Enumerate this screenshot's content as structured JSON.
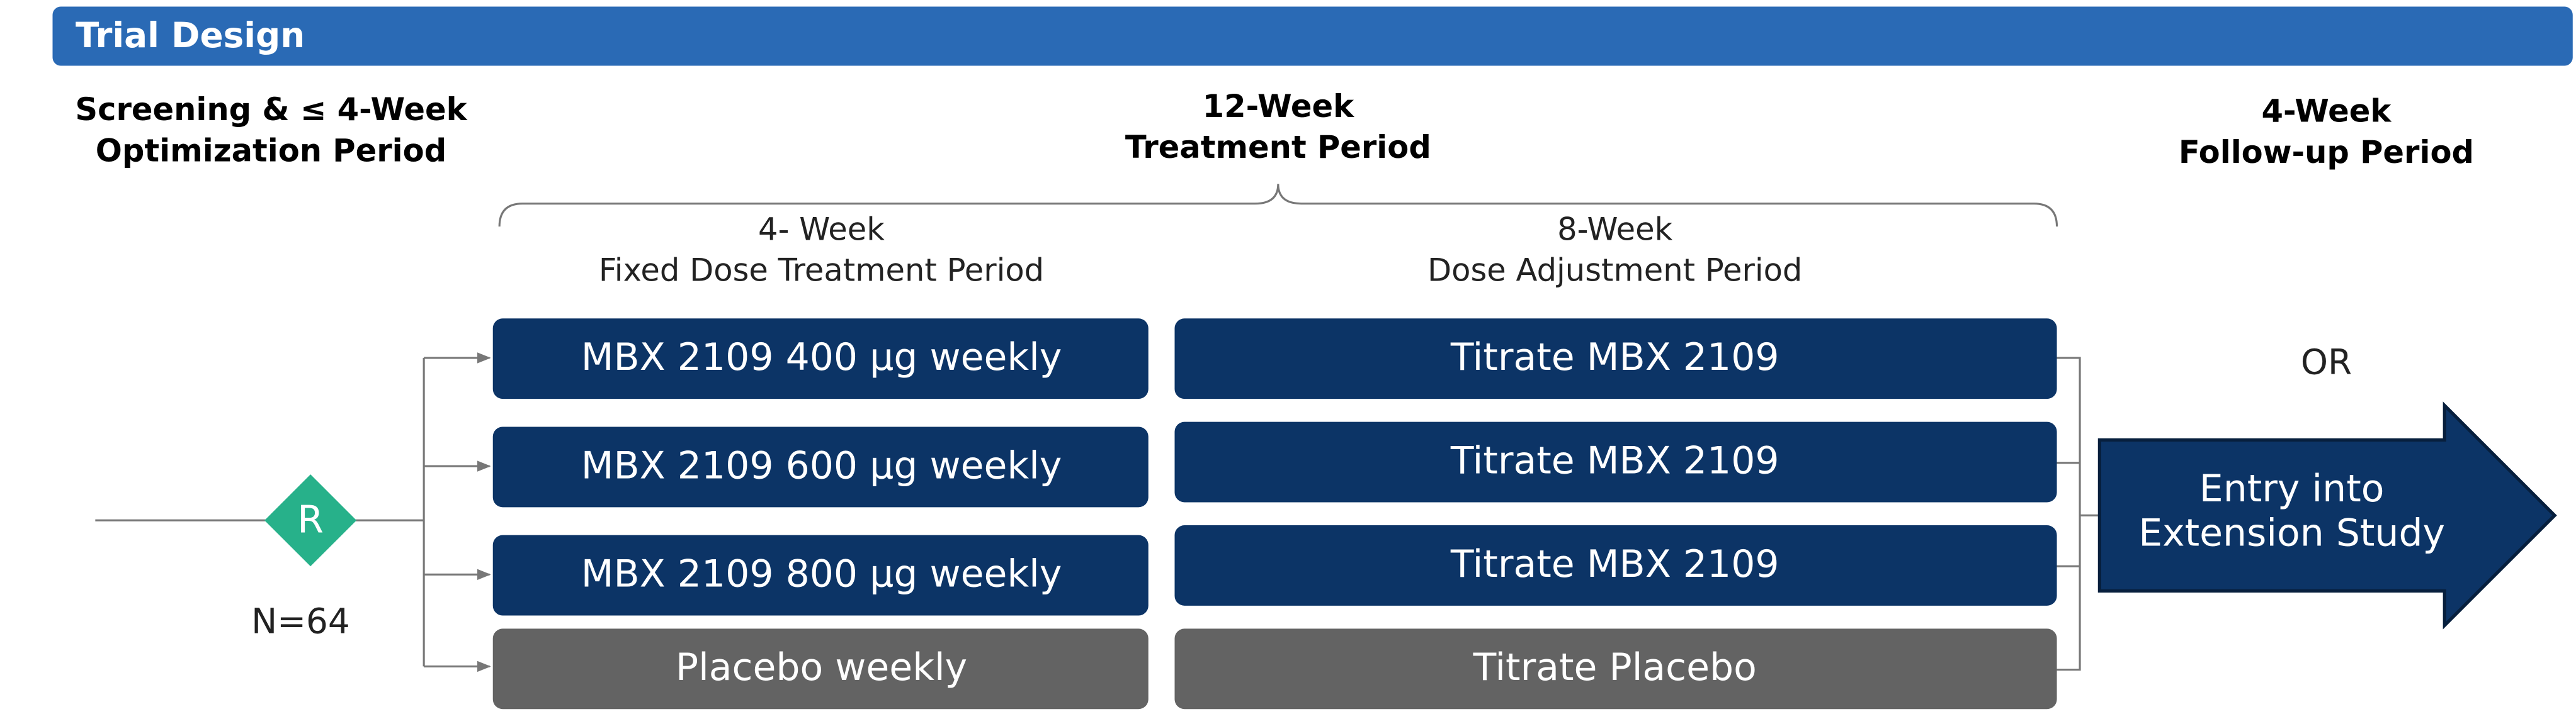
{
  "header": {
    "title": "Trial Design"
  },
  "screening": {
    "lines": [
      "Screening & ≤ 4-Week",
      "Optimization Period"
    ]
  },
  "treatment": {
    "lines": [
      "12-Week",
      "Treatment Period"
    ],
    "fixed_period": {
      "lines": [
        "4- Week",
        "Fixed Dose Treatment Period"
      ]
    },
    "adjustment_period": {
      "lines": [
        "8-Week",
        "Dose Adjustment Period"
      ]
    }
  },
  "followup": {
    "lines": [
      "4-Week",
      "Follow-up Period"
    ],
    "or": "OR",
    "extension": [
      "Entry into",
      "Extension Study"
    ]
  },
  "randomization": {
    "label": "R",
    "n": "N=64"
  },
  "arms": [
    {
      "fixed": "MBX 2109 400 µg weekly",
      "adjustment": "Titrate MBX 2109"
    },
    {
      "fixed": "MBX 2109 600 µg weekly",
      "adjustment": "Titrate MBX 2109"
    },
    {
      "fixed": "MBX 2109 800 µg weekly",
      "adjustment": "Titrate MBX 2109"
    },
    {
      "fixed": "Placebo weekly",
      "adjustment": "Titrate Placebo"
    }
  ]
}
